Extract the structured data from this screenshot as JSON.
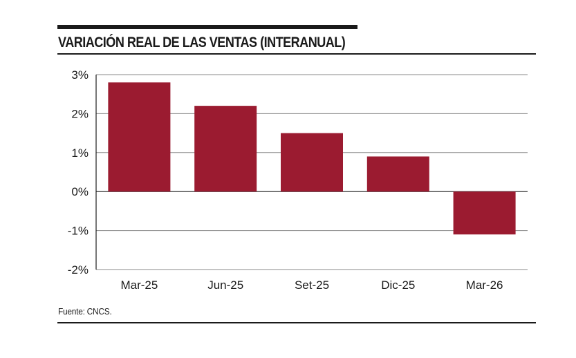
{
  "title": "VARIACIÓN REAL DE LAS VENTAS (INTERANUAL)",
  "source": "Fuente: CNCS.",
  "colors": {
    "bar": "#9b1b30",
    "grid": "#8a8a8a",
    "axis": "#1a1a1a"
  },
  "chart_data": {
    "type": "bar",
    "title": "VARIACIÓN REAL DE LAS VENTAS (INTERANUAL)",
    "xlabel": "",
    "ylabel": "",
    "categories": [
      "Mar-25",
      "Jun-25",
      "Set-25",
      "Dic-25",
      "Mar-26"
    ],
    "values": [
      2.8,
      2.2,
      1.5,
      0.9,
      -1.1
    ],
    "unit": "%",
    "ylim": [
      -2,
      3
    ],
    "yticks": [
      3,
      2,
      1,
      0,
      -1,
      -2
    ],
    "ytick_labels": [
      "3%",
      "2%",
      "1%",
      "0%",
      "-1%",
      "-2%"
    ],
    "grid": true,
    "legend": "none"
  }
}
